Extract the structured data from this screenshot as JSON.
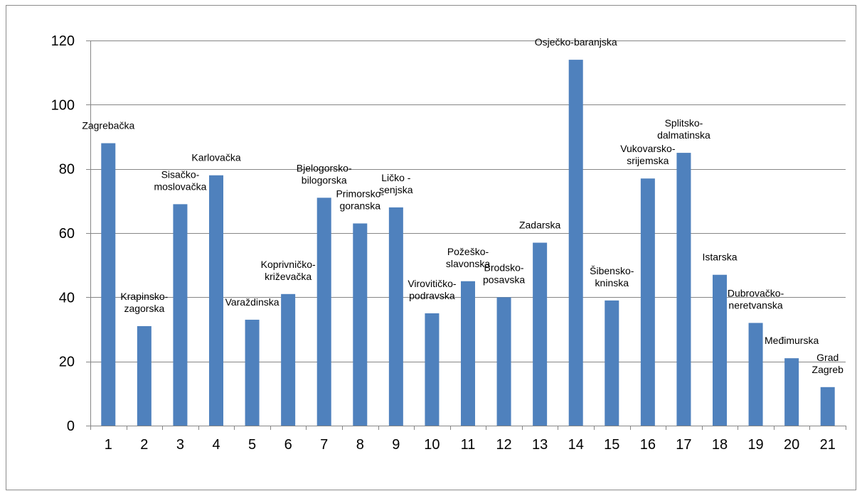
{
  "chart_data": {
    "type": "bar",
    "categories": [
      "1",
      "2",
      "3",
      "4",
      "5",
      "6",
      "7",
      "8",
      "9",
      "10",
      "11",
      "12",
      "13",
      "14",
      "15",
      "16",
      "17",
      "18",
      "19",
      "20",
      "21"
    ],
    "values": [
      88,
      31,
      69,
      78,
      33,
      41,
      71,
      63,
      68,
      35,
      45,
      40,
      57,
      114,
      39,
      77,
      85,
      47,
      32,
      21,
      12
    ],
    "data_labels": [
      [
        "Zagrebačka"
      ],
      [
        "Krapinsko-",
        "zagorska"
      ],
      [
        "Sisačko-",
        "moslovačka"
      ],
      [
        "Karlovačka"
      ],
      [
        "Varaždinska"
      ],
      [
        "Koprivničko-",
        "križevačka"
      ],
      [
        "Bjelogorsko-",
        "bilogorska"
      ],
      [
        "Primorsko-",
        "goranska"
      ],
      [
        "Ličko -",
        "senjska"
      ],
      [
        "Virovitičko-",
        "podravska"
      ],
      [
        "Požeško-",
        "slavonska"
      ],
      [
        "Brodsko-",
        "posavska"
      ],
      [
        "Zadarska"
      ],
      [
        "Osječko-baranjska"
      ],
      [
        "Šibensko-",
        "kninska"
      ],
      [
        "Vukovarsko-",
        "srijemska"
      ],
      [
        "Splitsko-",
        "dalmatinska"
      ],
      [
        "Istarska"
      ],
      [
        "Dubrovačko-",
        "neretvanska"
      ],
      [
        "Međimurska"
      ],
      [
        "Grad",
        "Zagreb"
      ]
    ],
    "y_ticks": [
      "0",
      "20",
      "40",
      "60",
      "80",
      "100",
      "120"
    ],
    "ylim": [
      0,
      120
    ],
    "grid": true,
    "legend": "none",
    "title": "",
    "xlabel": "",
    "ylabel": "",
    "colors": {
      "bar": "#4f81bd",
      "grid": "#868686",
      "axis": "#868686"
    }
  }
}
